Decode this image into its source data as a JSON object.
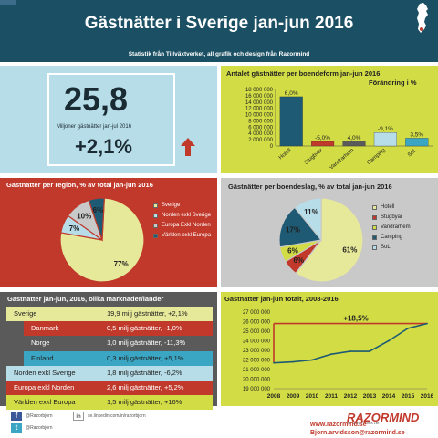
{
  "header": {
    "title": "Gästnätter i Sverige jan-jun 2016",
    "subtitle": "Statistik från Tillväxtverket, all grafik och design från Razormind"
  },
  "kpi": {
    "value": "25,8",
    "unit": "Miljoner gästnätter jan-jul 2016",
    "change": "+2,1%"
  },
  "colors": {
    "header": "#1b4f63",
    "lightblue": "#b7dde8",
    "yellowgreen": "#d2dd45",
    "red": "#c0392b",
    "grey": "#c9c9c9",
    "darkgrey": "#5a5a5a",
    "hotell": "#1e5a73",
    "stugbyar": "#c0392b",
    "vandrarhem": "#e6e89a",
    "camping": "#1e5a73",
    "sol": "#b7dde8"
  },
  "chart_data": [
    {
      "type": "bar",
      "title": "Antalet gästnätter per boendeform jan-jun 2016",
      "subtitle": "Förändring i %",
      "categories": [
        "Hotell",
        "Stugbyar",
        "Vandrarhem",
        "Camping",
        "SoL"
      ],
      "values": [
        15700000,
        1450000,
        1500000,
        4300000,
        2500000
      ],
      "data_labels": [
        "6,0%",
        "-5,0%",
        "4,0%",
        "-9,1%",
        "3,5%"
      ],
      "colors": [
        "#1e5a73",
        "#c0392b",
        "#5a5a5a",
        "#b7dde8",
        "#3aa6c4"
      ],
      "yticks": [
        "0",
        "2 000 000",
        "4 000 000",
        "6 000 000",
        "8 000 000",
        "10 000 000",
        "12 000 000",
        "14 000 000",
        "16 000 000",
        "18 000 000"
      ],
      "ylim": [
        0,
        18000000
      ]
    },
    {
      "type": "pie",
      "title": "Gästnätter per region, % av total jan-jun 2016",
      "labels": [
        "Sverige",
        "Norden exkl Sverige",
        "Europa Exkl Norden",
        "Världen exkl Europa"
      ],
      "values": [
        77,
        7,
        10,
        6
      ],
      "slice_labels": [
        "77%",
        "7%",
        "10%",
        "6%"
      ],
      "colors": [
        "#e6e89a",
        "#b7dde8",
        "#c9c9c9",
        "#1e5a73"
      ]
    },
    {
      "type": "pie",
      "title": "Gästnätter per boendeslag, % av total jan-jun 2016",
      "labels": [
        "Hotell",
        "Stugbyar",
        "Vandrarhem",
        "Camping",
        "SoL"
      ],
      "values": [
        61,
        6,
        6,
        17,
        11
      ],
      "slice_labels": [
        "61%",
        "6%",
        "6%",
        "17%",
        "11%"
      ],
      "colors": [
        "#e6e89a",
        "#c0392b",
        "#d2dd45",
        "#1e5a73",
        "#b7dde8"
      ]
    },
    {
      "type": "table",
      "title": "Gästnätter jan-jun, 2016, olika marknader/länder",
      "rows": [
        {
          "label": "Sverige",
          "value": "19,9 milj gästnätter, +2,1%",
          "color": "#e6e89a"
        },
        {
          "label": "Danmark",
          "value": "0,5 milj gästnätter, -1,0%",
          "color": "#c0392b"
        },
        {
          "label": "Norge",
          "value": "1,0 milj gästnätter, -11,3%",
          "color": "#5a5a5a"
        },
        {
          "label": "Finland",
          "value": "0,3 milj gästnätter, +5,1%",
          "color": "#3aa6c4"
        },
        {
          "label": "Norden exkl Sverige",
          "value": "1,8 milj gästnätter, -6,2%",
          "color": "#b7dde8"
        },
        {
          "label": "Europa exkl Norden",
          "value": "2,6 milj gästnätter, +5,2%",
          "color": "#c0392b"
        },
        {
          "label": "Världen exkl Europa",
          "value": "1,5 milj gästnätter, +16%",
          "color": "#d2dd45"
        }
      ]
    },
    {
      "type": "line",
      "title": "Gästnätter jan-jun totalt, 2008-2016",
      "x": [
        "2008",
        "2009",
        "2010",
        "2011",
        "2012",
        "2013",
        "2014",
        "2015",
        "2016"
      ],
      "values": [
        21700000,
        21800000,
        22000000,
        22600000,
        22900000,
        22900000,
        24000000,
        25300000,
        25800000
      ],
      "annotation": "+18,5%",
      "yticks": [
        "19 000 000",
        "20 000 000",
        "21 000 000",
        "22 000 000",
        "23 000 000",
        "24 000 000",
        "25 000 000",
        "26 000 000",
        "27 000 000"
      ],
      "ylim": [
        19000000,
        27000000
      ]
    }
  ],
  "footer": {
    "facebook": "@Razorbjorn",
    "linkedin": "se.linkedin.com/in/razorbjorn",
    "twitter": "@Razorbjorn",
    "brand": "RAZORMIND",
    "brand_tagline": "the Swing Force is Life",
    "website": "www.razormind.se",
    "email": "Bjorn.arvidsson@razormind.se"
  }
}
